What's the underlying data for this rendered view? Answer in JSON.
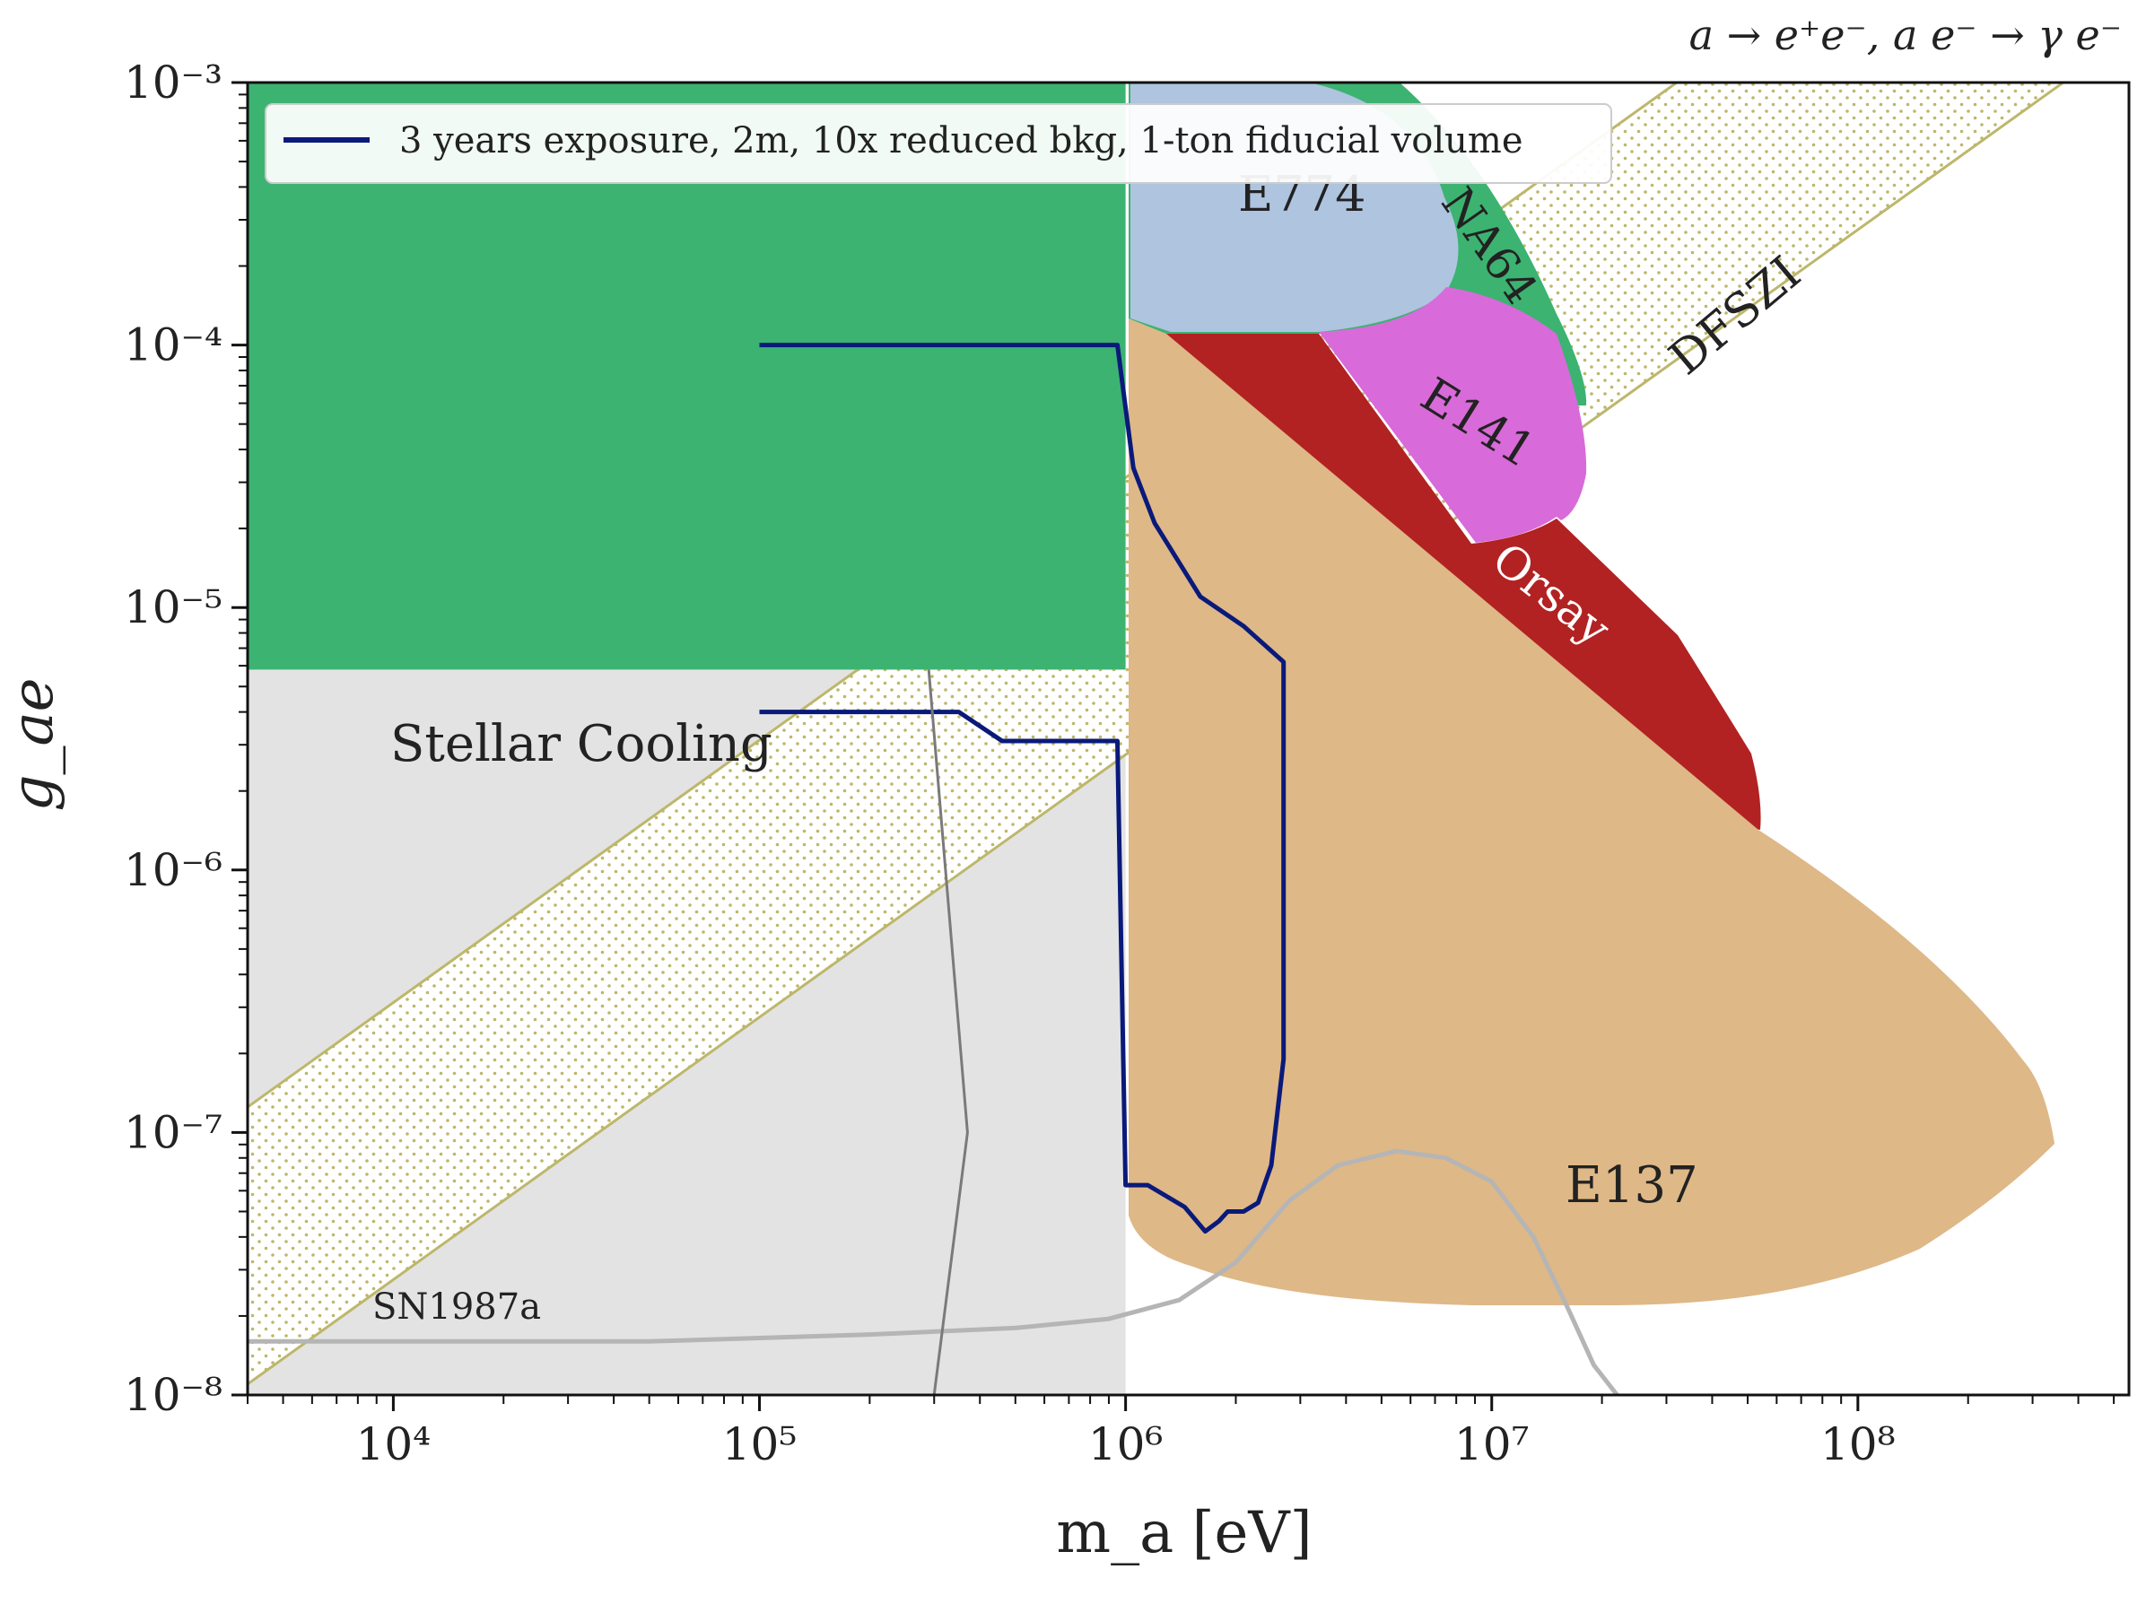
{
  "chart_data": {
    "type": "line",
    "title": "a → e⁺e⁻, a e⁻ → γ e⁻",
    "xlabel": "m_a [eV]",
    "ylabel": "g_ae",
    "xscale": "log",
    "yscale": "log",
    "xlim": [
      4000,
      550000000
    ],
    "ylim": [
      1e-08,
      0.001
    ],
    "x_ticks": [
      10000,
      100000,
      1000000,
      10000000,
      100000000
    ],
    "x_tick_labels": [
      "10^4",
      "10^5",
      "10^6",
      "10^7",
      "10^8"
    ],
    "y_ticks": [
      1e-08,
      1e-07,
      1e-06,
      1e-05,
      0.0001,
      0.001
    ],
    "y_tick_labels": [
      "10^-8",
      "10^-7",
      "10^-6",
      "10^-5",
      "10^-4",
      "10^-3"
    ],
    "legend": {
      "position": "top-left",
      "entries": [
        {
          "label": "3 years exposure, 2m, 10x reduced bkg, 1-ton fiducial volume",
          "color": "#0a1a7a"
        }
      ]
    },
    "series": [
      {
        "name": "3 years exposure, 2m, 10x reduced bkg, 1-ton fiducial volume",
        "color": "#0a1a7a",
        "points": [
          [
            100000,
            0.0001
          ],
          [
            950000,
            0.0001
          ],
          [
            1050000,
            3.4e-05
          ],
          [
            1200000,
            2.1e-05
          ],
          [
            1600000,
            1.1e-05
          ],
          [
            2100000,
            8.5e-06
          ],
          [
            2700000,
            6.2e-06
          ],
          [
            2700000,
            1.9e-07
          ],
          [
            2500000,
            7.5e-08
          ],
          [
            2300000,
            5.4e-08
          ],
          [
            2100000,
            5e-08
          ],
          [
            1900000,
            5e-08
          ],
          [
            1800000,
            4.6e-08
          ],
          [
            1650000,
            4.2e-08
          ],
          [
            1450000,
            5.2e-08
          ],
          [
            1150000,
            6.3e-08
          ],
          [
            1000000,
            6.3e-08
          ],
          [
            950000,
            3.1e-06
          ],
          [
            460000,
            3.1e-06
          ],
          [
            350000,
            4e-06
          ],
          [
            100000,
            4e-06
          ]
        ]
      },
      {
        "name": "SN1987a",
        "color": "#b5b5b5",
        "points": [
          [
            4000,
            1.6e-08
          ],
          [
            50000,
            1.6e-08
          ],
          [
            200000,
            1.7e-08
          ],
          [
            500000,
            1.8e-08
          ],
          [
            900000,
            1.95e-08
          ],
          [
            1400000,
            2.3e-08
          ],
          [
            2000000,
            3.2e-08
          ],
          [
            2800000,
            5.5e-08
          ],
          [
            3800000,
            7.5e-08
          ],
          [
            5500000,
            8.5e-08
          ],
          [
            7500000,
            8e-08
          ],
          [
            10000000,
            6.5e-08
          ],
          [
            13000000,
            4e-08
          ],
          [
            16000000,
            2.2e-08
          ],
          [
            19000000,
            1.3e-08
          ],
          [
            22000000,
            1e-08
          ]
        ]
      },
      {
        "name": "SN1987a lower-mass edge",
        "color": "#7a7a7a",
        "points": [
          [
            300000,
            1e-08
          ],
          [
            370000,
            1e-07
          ],
          [
            290000,
            5.8e-06
          ]
        ]
      }
    ],
    "regions": [
      {
        "name": "Stellar Cooling",
        "color": "#e3e3e3",
        "bounds": "g_ae below 5.8e-6 for m_a below 1e6 eV"
      },
      {
        "name": "Excluded (green)",
        "color": "#3cb371",
        "bounds": "g_ae above 5.8e-6 for m_a below 1e6 eV"
      },
      {
        "name": "E774",
        "color": "#aec4df"
      },
      {
        "name": "NA64",
        "color": "#3cb371"
      },
      {
        "name": "E141",
        "color": "#d96ad9"
      },
      {
        "name": "Orsay",
        "color": "#b22222"
      },
      {
        "name": "E137",
        "color": "#deb887"
      },
      {
        "name": "DFSZI",
        "color": "#bdb76b",
        "bounds": "diagonal band from g_ae≈1.25e-7 to 1.1e-8 at m_a=4000 eV, slope 1"
      }
    ],
    "annotations": [
      "Stellar Cooling",
      "SN1987a",
      "E774",
      "NA64",
      "DFSZI",
      "E141",
      "Orsay",
      "E137"
    ]
  }
}
